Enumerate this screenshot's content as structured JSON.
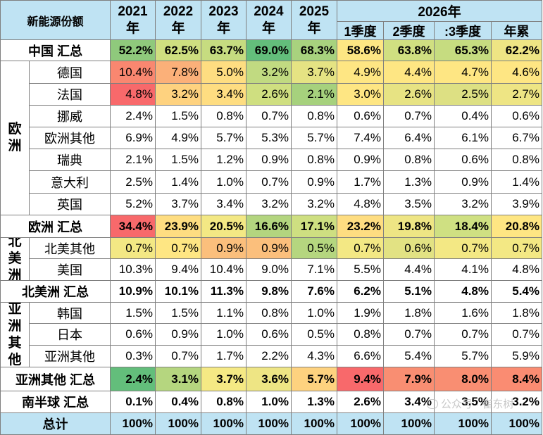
{
  "header": {
    "corner": "新能源份额",
    "group_2026": "2026年",
    "years": [
      [
        "2021",
        "年"
      ],
      [
        "2022",
        "年"
      ],
      [
        "2023",
        "年"
      ],
      [
        "2024",
        "年"
      ],
      [
        "2025",
        "年"
      ]
    ],
    "quarters": [
      "1季度",
      "2季度",
      ":3季度",
      "年累"
    ]
  },
  "regions": {
    "europe": [
      "欧",
      "洲"
    ],
    "north_america": [
      "北",
      "美",
      "洲"
    ],
    "asia_other": [
      "亚",
      "洲",
      "其",
      "他"
    ]
  },
  "rows": [
    {
      "label": "中国 汇总",
      "values": [
        "52.2%",
        "62.5%",
        "63.7%",
        "69.0%",
        "68.3%",
        "58.6%",
        "63.8%",
        "65.3%",
        "62.2%"
      ],
      "colors": [
        "#8fc97c",
        "#cfdf80",
        "#c6dc80",
        "#63be7b",
        "#a8d27e",
        "#fde683",
        "#d0df81",
        "#c6dc80",
        "#eee584"
      ]
    },
    {
      "label": "德国",
      "values": [
        "10.4%",
        "7.8%",
        "5.0%",
        "3.2%",
        "3.7%",
        "4.9%",
        "4.4%",
        "4.7%",
        "4.6%"
      ],
      "colors": [
        "#f98770",
        "#fbb079",
        "#fedd81",
        "#c1da81",
        "#e5e383",
        "#fee683",
        "#fee683",
        "#fee683",
        "#fee683"
      ]
    },
    {
      "label": "法国",
      "values": [
        "4.8%",
        "3.2%",
        "3.4%",
        "2.6%",
        "2.1%",
        "3.0%",
        "2.6%",
        "2.5%",
        "2.7%"
      ],
      "colors": [
        "#f8696b",
        "#fed27f",
        "#fedd81",
        "#cfdf80",
        "#a6d17d",
        "#fee683",
        "#e7e383",
        "#dde083",
        "#eee584"
      ]
    },
    {
      "label": "挪威",
      "values": [
        "2.4%",
        "1.5%",
        "0.8%",
        "0.7%",
        "0.8%",
        "0.6%",
        "0.7%",
        "0.4%",
        "0.6%"
      ],
      "colors": [
        "",
        "",
        "",
        "",
        "",
        "",
        "",
        "",
        ""
      ]
    },
    {
      "label": "欧洲其他",
      "values": [
        "6.9%",
        "4.9%",
        "5.7%",
        "5.3%",
        "5.7%",
        "7.4%",
        "6.4%",
        "6.1%",
        "6.7%"
      ],
      "colors": [
        "",
        "",
        "",
        "",
        "",
        "",
        "",
        "",
        ""
      ]
    },
    {
      "label": "瑞典",
      "values": [
        "2.1%",
        "1.5%",
        "1.2%",
        "0.9%",
        "0.8%",
        "0.9%",
        "0.8%",
        "0.6%",
        "0.8%"
      ],
      "colors": [
        "",
        "",
        "",
        "",
        "",
        "",
        "",
        "",
        ""
      ]
    },
    {
      "label": "意大利",
      "values": [
        "2.5%",
        "1.4%",
        "1.0%",
        "0.7%",
        "0.9%",
        "1.7%",
        "1.3%",
        "0.9%",
        "1.4%"
      ],
      "colors": [
        "",
        "",
        "",
        "",
        "",
        "",
        "",
        "",
        ""
      ]
    },
    {
      "label": "英国",
      "values": [
        "5.2%",
        "3.7%",
        "3.4%",
        "3.2%",
        "3.2%",
        "4.8%",
        "3.5%",
        "3.2%",
        "3.9%"
      ],
      "colors": [
        "",
        "",
        "",
        "",
        "",
        "",
        "",
        "",
        ""
      ]
    },
    {
      "label": "欧洲 汇总",
      "values": [
        "34.4%",
        "23.9%",
        "20.5%",
        "16.6%",
        "17.1%",
        "23.2%",
        "19.8%",
        "18.4%",
        "20.8%"
      ],
      "colors": [
        "#f8696b",
        "#fedd81",
        "#f3e884",
        "#b3d57f",
        "#cedf81",
        "#fedd81",
        "#eee584",
        "#cfe082",
        "#fee683"
      ]
    },
    {
      "label": "北美其他",
      "values": [
        "0.7%",
        "0.7%",
        "0.9%",
        "0.9%",
        "0.5%",
        "0.7%",
        "0.6%",
        "0.7%",
        "0.7%"
      ],
      "colors": [
        "#f3e884",
        "#fee683",
        "#fbbf7c",
        "#fbbf7c",
        "#b5d67f",
        "#f3e884",
        "#e2e283",
        "#f3e884",
        "#f3e884"
      ]
    },
    {
      "label": "美国",
      "values": [
        "10.3%",
        "9.4%",
        "10.4%",
        "9.0%",
        "7.1%",
        "5.5%",
        "4.4%",
        "4.1%",
        "4.8%"
      ],
      "colors": [
        "",
        "",
        "",
        "",
        "",
        "",
        "",
        "",
        ""
      ]
    },
    {
      "label": "北美洲 汇总",
      "values": [
        "10.9%",
        "10.1%",
        "11.3%",
        "9.8%",
        "7.6%",
        "6.2%",
        "5.1%",
        "4.8%",
        "5.4%"
      ],
      "colors": [
        "",
        "",
        "",
        "",
        "",
        "",
        "",
        "",
        ""
      ]
    },
    {
      "label": "韩国",
      "values": [
        "1.5%",
        "1.5%",
        "1.1%",
        "0.8%",
        "1.0%",
        "1.9%",
        "1.8%",
        "1.6%",
        "1.8%"
      ],
      "colors": [
        "",
        "",
        "",
        "",
        "",
        "",
        "",
        "",
        ""
      ]
    },
    {
      "label": "日本",
      "values": [
        "0.6%",
        "0.9%",
        "1.0%",
        "0.6%",
        "0.5%",
        "0.8%",
        "0.7%",
        "0.7%",
        "0.7%"
      ],
      "colors": [
        "",
        "",
        "",
        "",
        "",
        "",
        "",
        "",
        ""
      ]
    },
    {
      "label": "亚洲其他",
      "values": [
        "0.3%",
        "0.7%",
        "1.7%",
        "2.2%",
        "4.3%",
        "6.6%",
        "5.4%",
        "5.7%",
        "5.9%"
      ],
      "colors": [
        "",
        "",
        "",
        "",
        "",
        "",
        "",
        "",
        ""
      ]
    },
    {
      "label": "亚洲其他 汇总",
      "values": [
        "2.4%",
        "3.1%",
        "3.7%",
        "3.6%",
        "5.7%",
        "9.4%",
        "7.9%",
        "8.0%",
        "8.4%"
      ],
      "colors": [
        "#63be7b",
        "#b5d67f",
        "#f5e984",
        "#eee584",
        "#fed27f",
        "#f8696b",
        "#f98e72",
        "#f98e72",
        "#fa8c72"
      ]
    },
    {
      "label": "南半球 汇总",
      "values": [
        "0.1%",
        "0.4%",
        "0.8%",
        "1.0%",
        "1.3%",
        "2.6%",
        "3.4%",
        "3.5%",
        "3.2%"
      ],
      "colors": [
        "",
        "",
        "",
        "",
        "",
        "",
        "",
        "",
        ""
      ]
    },
    {
      "label": "总计",
      "values": [
        "100%",
        "100%",
        "100%",
        "100%",
        "100%",
        "100%",
        "100%",
        "100%",
        "100%"
      ],
      "colors": [
        "",
        "",
        "",
        "",
        "",
        "",
        "",
        "",
        ""
      ]
    }
  ],
  "watermark": "公众号 · 崔东树",
  "colors": {
    "header_bg": "#bfe3f3",
    "grid": "#7f7f7f"
  }
}
